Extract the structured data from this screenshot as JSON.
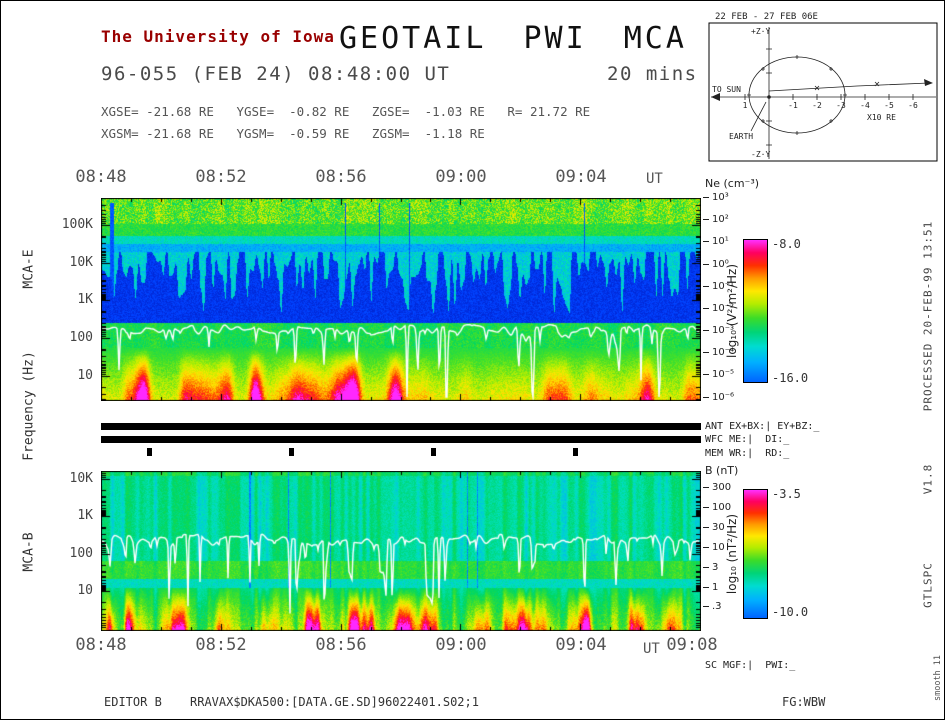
{
  "colors": {
    "accent_red": "#990000"
  },
  "header": {
    "institution": "The University of Iowa",
    "title": "GEOTAIL PWI MCA",
    "timestamp": "96-055 (FEB 24) 08:48:00 UT",
    "duration": "20 mins",
    "gse_line": "XGSE= -21.68 RE   YGSE=  -0.82 RE   ZGSE=  -1.03 RE   R= 21.72 RE",
    "gsm_line": "XGSM= -21.68 RE   YGSM=  -0.59 RE   ZGSM=  -1.18 RE"
  },
  "orbit": {
    "title": "22 FEB - 27 FEB  06E",
    "plus_z": "+Z·Y",
    "minus_z": "-Z·Y",
    "to_sun": "TO SUN",
    "earth": "EARTH",
    "x_ticks": [
      "1",
      "-1",
      "-2",
      "-3",
      "-4",
      "-5",
      "-6"
    ],
    "scale": "X10 RE"
  },
  "time_axis": {
    "labels": [
      "08:48",
      "08:52",
      "08:56",
      "09:00",
      "09:04"
    ],
    "ut": "UT",
    "end_label": "09:08"
  },
  "freq_axis_label": "Frequency (Hz)",
  "mca_e": {
    "name": "MCA-E",
    "freq_ticks": [
      "100K",
      "10K",
      "1K",
      "100",
      "10"
    ],
    "ne_title": "Ne (cm⁻³)",
    "ne_ticks": [
      "10³",
      "10²",
      "10¹",
      "10⁰",
      "10⁻¹",
      "10⁻²",
      "10⁻³",
      "10⁻⁴",
      "10⁻⁵",
      "10⁻⁶"
    ],
    "cbar_label": "log₁₀ (V²/m²/Hz)",
    "cbar_max": "-8.0",
    "cbar_min": "-16.0"
  },
  "mca_b": {
    "name": "MCA-B",
    "freq_ticks": [
      "10K",
      "1K",
      "100",
      "10"
    ],
    "b_title": "B (nT)",
    "b_ticks": [
      "300",
      "100",
      "30",
      "10",
      "3",
      "1",
      ".3"
    ],
    "cbar_label": "log₁₀ (nT²/Hz)",
    "cbar_max": "-3.5",
    "cbar_min": "-10.0"
  },
  "status": {
    "ant": "ANT EX+BX:| EY+BZ:_",
    "wfc": "WFC ME:|  DI:_",
    "mem": "MEM WR:|  RD:_",
    "sc": "SC MGF:|  PWI:_"
  },
  "footer": {
    "editor": "EDITOR B",
    "file": "RRAVAX$DKA500:[DATA.GE.SD]96022401.S02;1",
    "fg": "FG:WBW"
  },
  "annotations": {
    "processed": "PROCESSED 20-FEB-99  13:51",
    "version": "V1.8",
    "program": "GTLSPC",
    "smooth": "smooth 11"
  },
  "chart_data": [
    {
      "type": "heatmap",
      "title": "MCA-E electric field spectrogram",
      "xlabel": "UT",
      "ylabel": "Frequency (Hz)",
      "x_start": "08:48",
      "x_end": "09:08",
      "x_ticks": [
        "08:48",
        "08:52",
        "08:56",
        "09:00",
        "09:04",
        "09:08"
      ],
      "y_scale": "log",
      "y_tick_labels": [
        "10",
        "100",
        "1K",
        "10K",
        "100K"
      ],
      "right_axis": {
        "label": "Ne (cm^-3)",
        "tick_labels": [
          "10^3",
          "10^2",
          "10^1",
          "10^0",
          "10^-1",
          "10^-2",
          "10^-3",
          "10^-4",
          "10^-5",
          "10^-6"
        ]
      },
      "colorbar": {
        "label": "log10 (V^2/m^2/Hz)",
        "max": -8.0,
        "min": -16.0,
        "top_color": "#ff00ff",
        "bottom_color": "#0064ff"
      },
      "features": [
        "continuous green-yellow emission band above ~50 kHz",
        "cyan band near 20-50 kHz over a dark blue 1-10 kHz region filled with dense vertical cyan bursts",
        "white density/cyclotron trace near 200-300 Hz with sharp downward dips",
        "intense yellow-red-magenta broadband bursts below ~100 Hz"
      ]
    },
    {
      "type": "heatmap",
      "title": "MCA-B magnetic field spectrogram",
      "xlabel": "UT",
      "ylabel": "Frequency (Hz)",
      "x_start": "08:48",
      "x_end": "09:08",
      "x_ticks": [
        "08:48",
        "08:52",
        "08:56",
        "09:00",
        "09:04",
        "09:08"
      ],
      "y_scale": "log",
      "y_tick_labels": [
        "10",
        "100",
        "1K",
        "10K"
      ],
      "right_axis": {
        "label": "B (nT)",
        "tick_labels": [
          "300",
          "100",
          "30",
          "10",
          "3",
          "1",
          ".3"
        ]
      },
      "colorbar": {
        "label": "log10 (nT^2/Hz)",
        "max": -3.5,
        "min": -10.0,
        "top_color": "#ff00ff",
        "bottom_color": "#0064ff"
      },
      "features": [
        "cyan-green striated background across the band",
        "white trace near 100-300 Hz with downward dips",
        "green enhancement band near 30-50 Hz",
        "red-magenta impulsive bursts below ~20 Hz"
      ]
    }
  ]
}
